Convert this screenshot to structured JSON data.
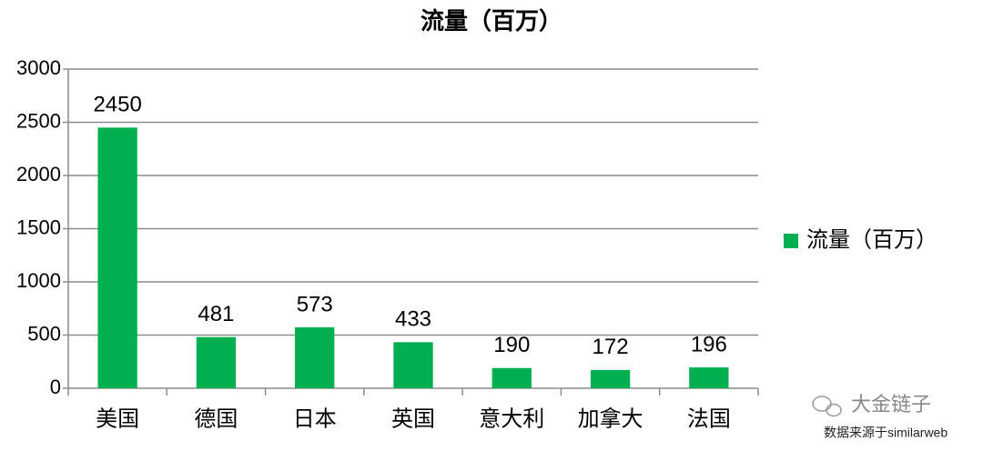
{
  "chart_data": {
    "type": "bar",
    "title": "流量（百万）",
    "categories": [
      "美国",
      "德国",
      "日本",
      "英国",
      "意大利",
      "加拿大",
      "法国"
    ],
    "series": [
      {
        "name": "流量（百万）",
        "color": "#00b050",
        "values": [
          2450,
          481,
          573,
          433,
          190,
          172,
          196
        ]
      }
    ],
    "ylim": [
      0,
      3000
    ],
    "yticks": [
      0,
      500,
      1000,
      1500,
      2000,
      2500,
      3000
    ],
    "grid": true,
    "legend": "right",
    "annotations": [
      "大金链子",
      "数据来源于similarweb"
    ]
  }
}
